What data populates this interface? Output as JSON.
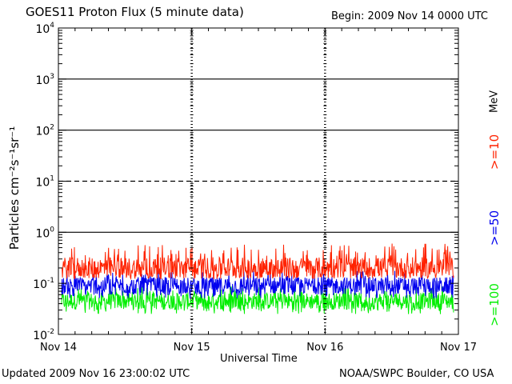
{
  "chart_data": {
    "type": "line",
    "title": "GOES11 Proton Flux (5 minute data)",
    "begin": "Begin: 2009 Nov 14 0000 UTC",
    "xlabel": "Universal Time",
    "ylabel": "Particles cm⁻²s⁻¹sr⁻¹",
    "unit_label": "MeV",
    "y_scale": "log",
    "ylim": [
      0.01,
      10000
    ],
    "xlim": [
      "2009-11-14",
      "2009-11-17"
    ],
    "x_ticks": [
      "Nov 14",
      "Nov 15",
      "Nov 16",
      "Nov 17"
    ],
    "y_ticks": [
      {
        "base": "10",
        "exp": "-2"
      },
      {
        "base": "10",
        "exp": "-1"
      },
      {
        "base": "10",
        "exp": "0"
      },
      {
        "base": "10",
        "exp": "1"
      },
      {
        "base": "10",
        "exp": "2"
      },
      {
        "base": "10",
        "exp": "3"
      },
      {
        "base": "10",
        "exp": "4"
      }
    ],
    "reference_lines": [
      {
        "value": 1,
        "style": "solid"
      },
      {
        "value": 10,
        "style": "dashed"
      },
      {
        "value": 100,
        "style": "solid"
      },
      {
        "value": 1000,
        "style": "solid"
      }
    ],
    "series": [
      {
        "name": ">=10",
        "color": "#ff2200",
        "typical": 0.2,
        "min": 0.12,
        "max": 0.6
      },
      {
        "name": ">=50",
        "color": "#0000ee",
        "typical": 0.09,
        "min": 0.05,
        "max": 0.18
      },
      {
        "name": ">=100",
        "color": "#00ee00",
        "typical": 0.045,
        "min": 0.025,
        "max": 0.09
      }
    ]
  },
  "footer": {
    "updated": "Updated 2009 Nov 16 23:00:02 UTC",
    "source": "NOAA/SWPC Boulder, CO USA"
  }
}
